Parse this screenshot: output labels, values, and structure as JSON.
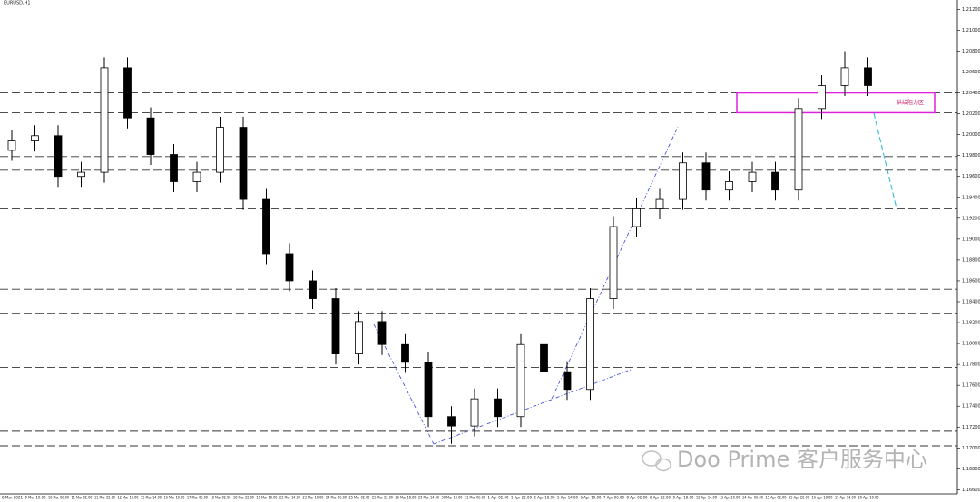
{
  "chart_data": {
    "type": "candlestick",
    "title": "EURUSD,H1",
    "watermark": "Doo Prime 客户服务中心",
    "zone": {
      "label": "供给阻力区",
      "from": 1.2021,
      "to": 1.204
    },
    "categories": [
      "8 Mar 2021",
      "9 Mar 10:00",
      "10 Mar 06:00",
      "11 Mar 02:00",
      "11 Mar 22:00",
      "12 Mar 18:00",
      "15 Mar 14:00",
      "16 Mar 10:00",
      "17 Mar 06:00",
      "18 Mar 02:00",
      "18 Mar 22:00",
      "19 Mar 18:00",
      "22 Mar 14:00",
      "23 Mar 10:00",
      "24 Mar 06:00",
      "25 Mar 02:00",
      "25 Mar 22:00",
      "26 Mar 18:00",
      "29 Mar 14:00",
      "30 Mar 10:00",
      "31 Mar 06:00",
      "1 Apr 02:00",
      "1 Apr 22:00",
      "2 Apr 18:00",
      "5 Apr 14:00",
      "6 Apr 10:00",
      "7 Apr 06:00",
      "8 Apr 02:00",
      "8 Apr 22:00",
      "9 Apr 18:00",
      "12 Apr 14:00",
      "13 Apr 10:00",
      "14 Apr 06:00",
      "15 Apr 02:00",
      "15 Apr 22:00",
      "16 Apr 18:00",
      "19 Apr 14:00",
      "20 Apr 10:00"
    ],
    "open": [
      1.1985,
      1.1994,
      1.1999,
      1.196,
      1.1964,
      1.2064,
      1.2016,
      1.1981,
      1.1955,
      1.1964,
      1.2007,
      1.1938,
      1.1886,
      1.186,
      1.1843,
      1.179,
      1.1821,
      1.1799,
      1.1782,
      1.173,
      1.1721,
      1.1747,
      1.173,
      1.1799,
      1.1773,
      1.1756,
      1.1843,
      1.1912,
      1.1929,
      1.1938,
      1.1973,
      1.1947,
      1.1955,
      1.1964,
      1.1947,
      1.2025,
      1.2047,
      1.2064
    ],
    "high": [
      1.2004,
      1.2009,
      1.2009,
      1.1974,
      1.2074,
      1.2074,
      1.2026,
      1.1991,
      1.1974,
      1.2017,
      1.2017,
      1.1948,
      1.1896,
      1.187,
      1.1853,
      1.1831,
      1.1831,
      1.1809,
      1.1792,
      1.174,
      1.1757,
      1.1757,
      1.1809,
      1.1809,
      1.1783,
      1.1853,
      1.1922,
      1.1939,
      1.1948,
      1.1983,
      1.1983,
      1.1965,
      1.1974,
      1.1974,
      1.2035,
      1.2057,
      1.208,
      1.2074
    ],
    "low": [
      1.1975,
      1.1984,
      1.195,
      1.195,
      1.1954,
      1.2006,
      1.1971,
      1.1945,
      1.1945,
      1.1954,
      1.1928,
      1.1876,
      1.185,
      1.1833,
      1.178,
      1.178,
      1.1789,
      1.1772,
      1.172,
      1.1704,
      1.1711,
      1.172,
      1.172,
      1.1763,
      1.1746,
      1.1746,
      1.1833,
      1.1902,
      1.1919,
      1.1928,
      1.1937,
      1.1937,
      1.1945,
      1.1937,
      1.1937,
      1.2015,
      1.2037,
      1.2037
    ],
    "close": [
      1.1994,
      1.1999,
      1.196,
      1.1964,
      1.2064,
      1.2016,
      1.1981,
      1.1955,
      1.1964,
      1.2007,
      1.1938,
      1.1886,
      1.186,
      1.1843,
      1.179,
      1.1821,
      1.1799,
      1.1782,
      1.173,
      1.1721,
      1.1747,
      1.173,
      1.1799,
      1.1773,
      1.1756,
      1.1843,
      1.1912,
      1.1929,
      1.1938,
      1.1973,
      1.1947,
      1.1955,
      1.1964,
      1.1947,
      1.2025,
      1.2047,
      1.2064,
      1.2047
    ],
    "levels": [
      1.204,
      1.2021,
      1.1979,
      1.1966,
      1.1929,
      1.1852,
      1.1829,
      1.1777,
      1.1716,
      1.1702
    ],
    "ylim": [
      1.1656,
      1.2129
    ],
    "yticks": [
      {
        "value": 1.166,
        "label": "1.16600"
      },
      {
        "value": 1.168,
        "label": "1.16800"
      },
      {
        "value": 1.17,
        "label": "1.17000"
      },
      {
        "value": 1.172,
        "label": "1.17200"
      },
      {
        "value": 1.174,
        "label": "1.17400"
      },
      {
        "value": 1.176,
        "label": "1.17600"
      },
      {
        "value": 1.178,
        "label": "1.17800"
      },
      {
        "value": 1.18,
        "label": "1.18000"
      },
      {
        "value": 1.182,
        "label": "1.18200"
      },
      {
        "value": 1.184,
        "label": "1.18400"
      },
      {
        "value": 1.186,
        "label": "1.18600"
      },
      {
        "value": 1.188,
        "label": "1.18800"
      },
      {
        "value": 1.19,
        "label": "1.19000"
      },
      {
        "value": 1.192,
        "label": "1.19200"
      },
      {
        "value": 1.194,
        "label": "1.19400"
      },
      {
        "value": 1.196,
        "label": "1.19600"
      },
      {
        "value": 1.198,
        "label": "1.19800"
      },
      {
        "value": 1.2,
        "label": "1.20000"
      },
      {
        "value": 1.202,
        "label": "1.20200"
      },
      {
        "value": 1.204,
        "label": "1.20400"
      },
      {
        "value": 1.206,
        "label": "1.20600"
      },
      {
        "value": 1.208,
        "label": "1.20800"
      },
      {
        "value": 1.21,
        "label": "1.21000"
      },
      {
        "value": 1.212,
        "label": "1.21200"
      }
    ]
  }
}
